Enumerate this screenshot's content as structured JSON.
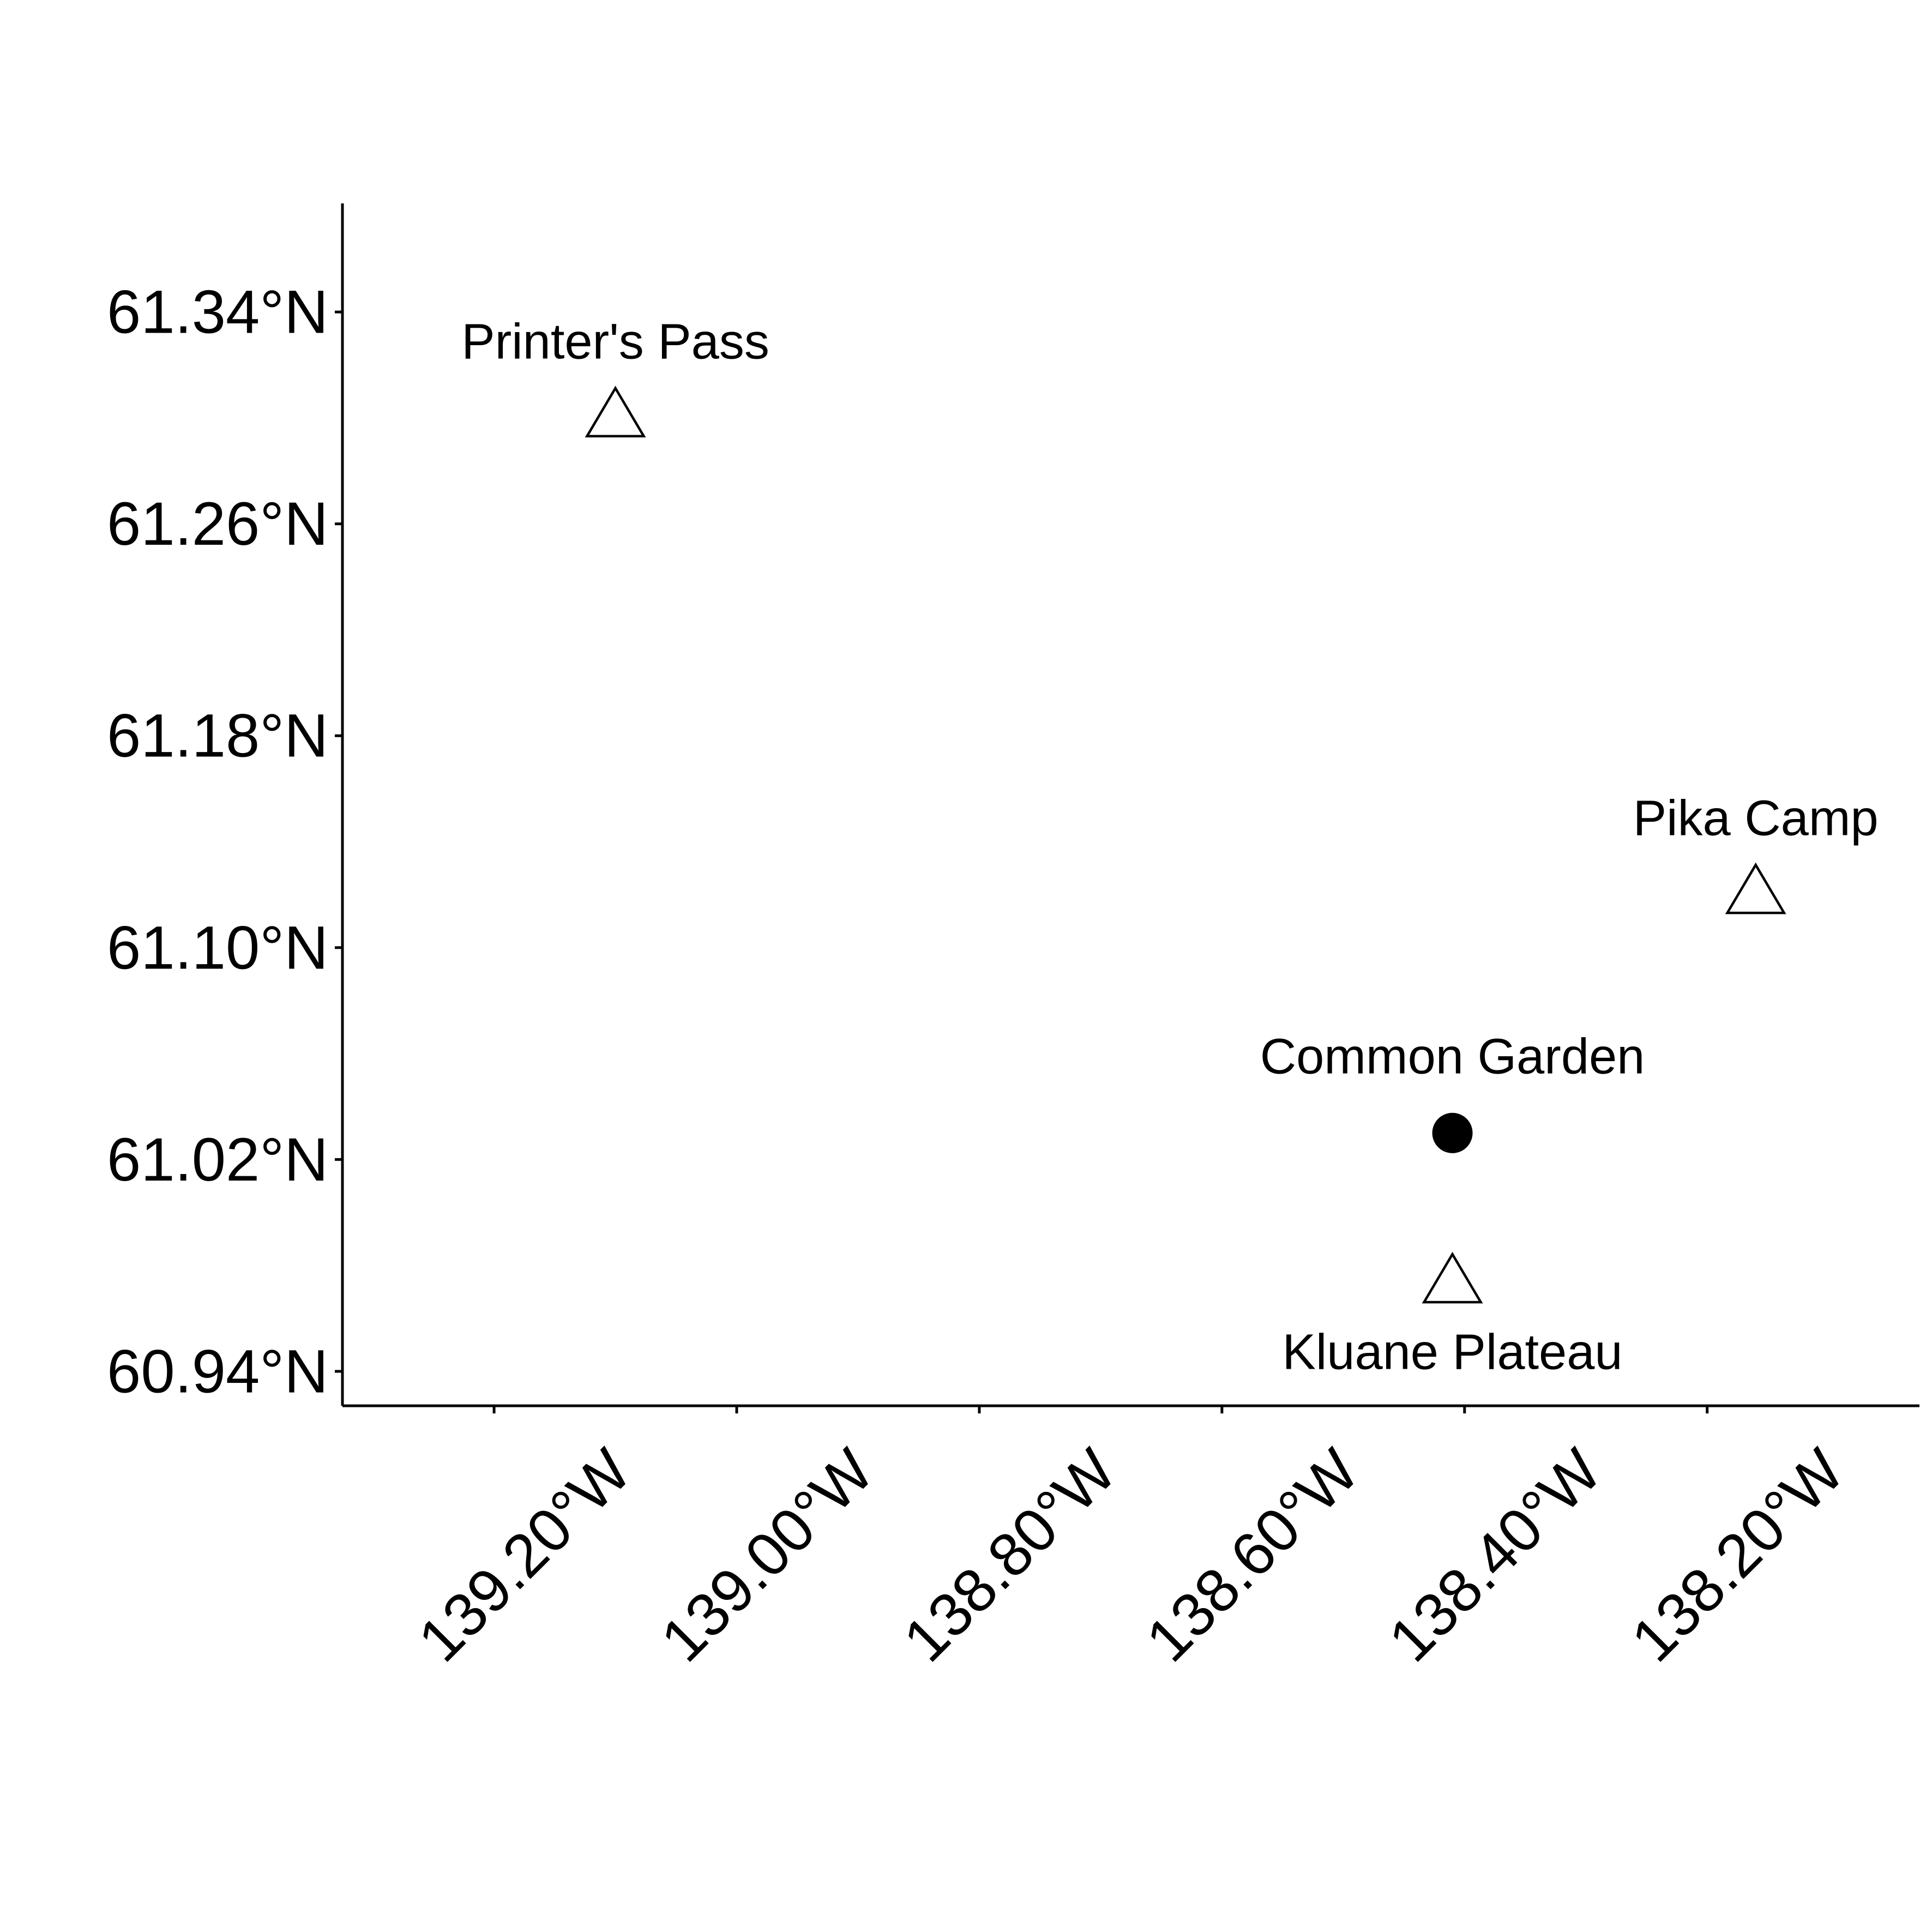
{
  "chart_data": {
    "type": "scatter",
    "title": "",
    "xlabel": "",
    "ylabel": "",
    "xlim": [
      -139.325,
      -138.025
    ],
    "ylim": [
      60.927,
      61.381
    ],
    "x_ticks": [
      {
        "value": -139.2,
        "label": "139.20°W"
      },
      {
        "value": -139.0,
        "label": "139.00°W"
      },
      {
        "value": -138.8,
        "label": "138.80°W"
      },
      {
        "value": -138.6,
        "label": "138.60°W"
      },
      {
        "value": -138.4,
        "label": "138.40°W"
      },
      {
        "value": -138.2,
        "label": "138.20°W"
      }
    ],
    "y_ticks": [
      {
        "value": 61.34,
        "label": "61.34°N"
      },
      {
        "value": 61.26,
        "label": "61.26°N"
      },
      {
        "value": 61.18,
        "label": "61.18°N"
      },
      {
        "value": 61.1,
        "label": "61.10°N"
      },
      {
        "value": 61.02,
        "label": "61.02°N"
      },
      {
        "value": 60.94,
        "label": "60.94°N"
      }
    ],
    "grid": false,
    "points": [
      {
        "name": "Printer's Pass",
        "lon": -139.1,
        "lat": 61.3,
        "shape": "triangle-open",
        "label_position": "above"
      },
      {
        "name": "Pika Camp",
        "lon": -138.16,
        "lat": 61.12,
        "shape": "triangle-open",
        "label_position": "above"
      },
      {
        "name": "Common Garden",
        "lon": -138.41,
        "lat": 61.03,
        "shape": "circle-filled",
        "label_position": "above"
      },
      {
        "name": "Kluane Plateau",
        "lon": -138.41,
        "lat": 60.973,
        "shape": "triangle-open",
        "label_position": "below"
      }
    ]
  }
}
